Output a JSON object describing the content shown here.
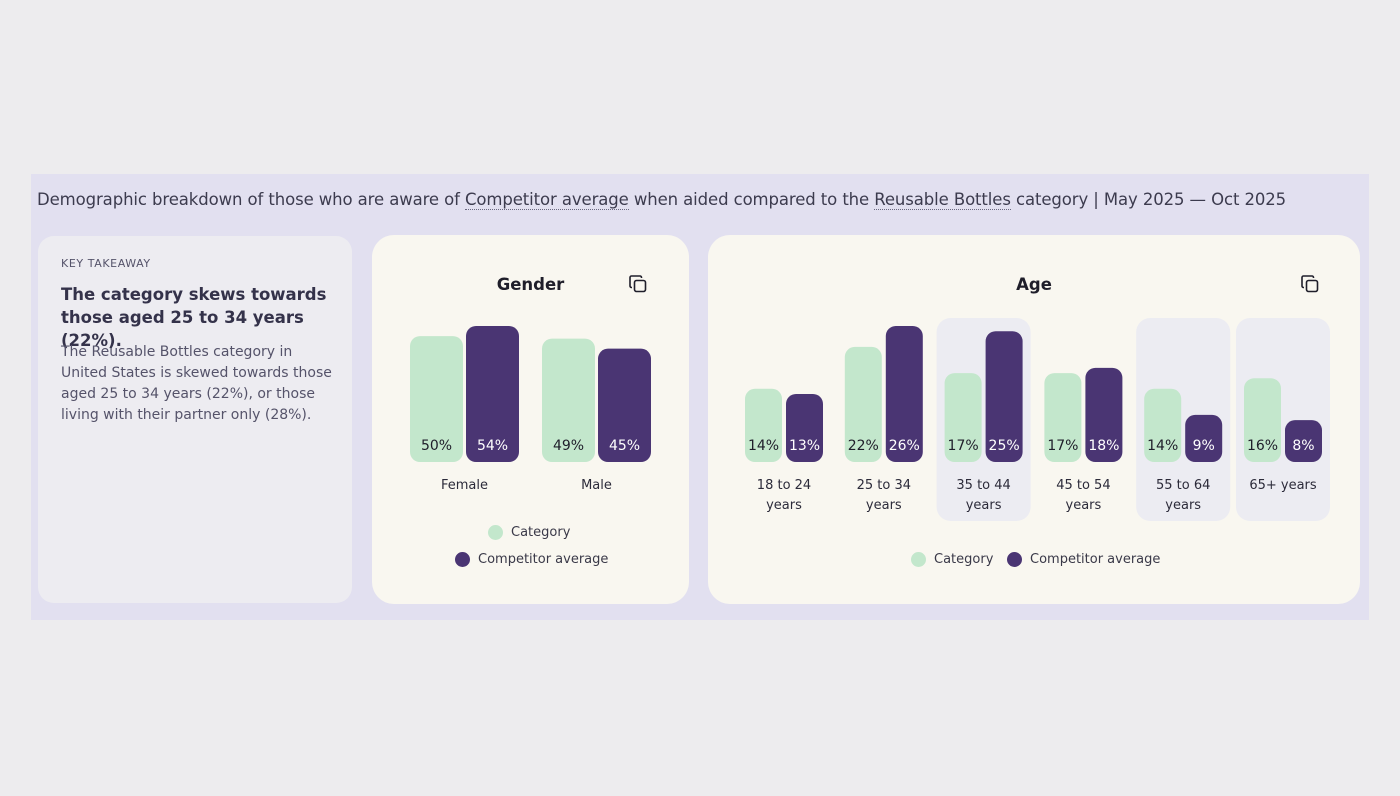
{
  "heading": {
    "prefix": "Demographic breakdown of those who are aware of ",
    "brand_link": "Competitor average",
    "middle": " when aided compared to the ",
    "category_link": "Reusable Bottles",
    "suffix": " category | May 2025 — Oct 2025"
  },
  "takeaway": {
    "kicker": "KEY TAKEAWAY",
    "headline": "The category skews towards those aged 25 to 34 years (22%).",
    "body": "The Reusable Bottles category in United States is skewed towards those aged 25 to 34 years (22%), or those living with their partner only (28%)."
  },
  "colors": {
    "category": "#c3e7cc",
    "competitor": "#4a3573",
    "highlight": "#ececf2"
  },
  "legend": {
    "category": "Category",
    "competitor": "Competitor average"
  },
  "chart_data": [
    {
      "type": "bar",
      "title": "Gender",
      "categories": [
        "Female",
        "Male"
      ],
      "series": [
        {
          "name": "Category",
          "values": [
            50,
            49
          ]
        },
        {
          "name": "Competitor average",
          "values": [
            54,
            45
          ]
        }
      ],
      "value_suffix": "%",
      "ylim": [
        0,
        54
      ],
      "legend_position": "bottom"
    },
    {
      "type": "bar",
      "title": "Age",
      "categories": [
        [
          "18 to 24",
          "years"
        ],
        [
          "25 to 34",
          "years"
        ],
        [
          "35 to 44",
          "years"
        ],
        [
          "45 to 54",
          "years"
        ],
        [
          "55 to 64",
          "years"
        ],
        [
          "65+ years"
        ]
      ],
      "highlighted": [
        false,
        false,
        true,
        false,
        true,
        true
      ],
      "series": [
        {
          "name": "Category",
          "values": [
            14,
            22,
            17,
            17,
            14,
            16
          ]
        },
        {
          "name": "Competitor average",
          "values": [
            13,
            26,
            25,
            18,
            9,
            8
          ]
        }
      ],
      "value_suffix": "%",
      "ylim": [
        0,
        26
      ],
      "legend_position": "bottom"
    }
  ]
}
